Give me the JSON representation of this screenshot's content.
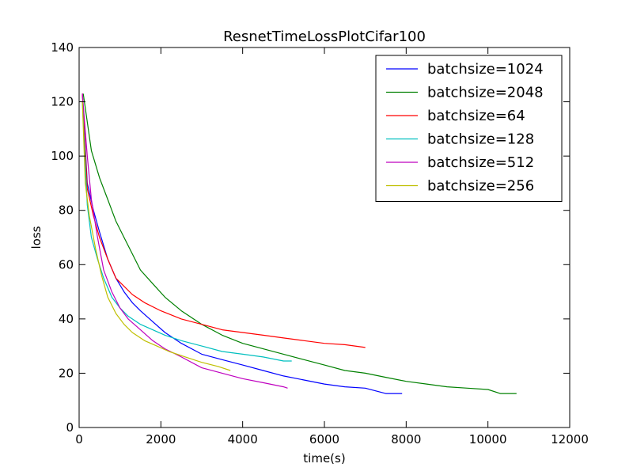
{
  "chart_data": {
    "type": "line",
    "title": "ResnetTimeLossPlotCifar100",
    "xlabel": "time(s)",
    "ylabel": "loss",
    "xlim": [
      0,
      12000
    ],
    "ylim": [
      0,
      140
    ],
    "xticks": [
      0,
      2000,
      4000,
      6000,
      8000,
      10000,
      12000
    ],
    "yticks": [
      0,
      20,
      40,
      60,
      80,
      100,
      120,
      140
    ],
    "grid": false,
    "legend_position": "top-right",
    "series": [
      {
        "name": "batchsize=1024",
        "color": "#0000ff",
        "x": [
          80,
          200,
          350,
          500,
          700,
          900,
          1100,
          1300,
          1500,
          1800,
          2100,
          2500,
          3000,
          3500,
          4000,
          4500,
          5000,
          5500,
          6000,
          6500,
          7000,
          7500,
          7900
        ],
        "y": [
          123,
          90,
          80,
          72,
          62,
          55,
          50,
          46,
          43,
          39,
          35,
          31,
          27,
          25,
          23,
          21,
          19,
          17.5,
          16,
          15,
          14.5,
          12.5,
          12.5
        ]
      },
      {
        "name": "batchsize=2048",
        "color": "#008000",
        "x": [
          100,
          300,
          500,
          700,
          900,
          1100,
          1300,
          1500,
          1800,
          2100,
          2500,
          3000,
          3500,
          4000,
          4500,
          5000,
          5500,
          6000,
          6500,
          7000,
          7500,
          8000,
          8500,
          9000,
          9500,
          10000,
          10300,
          10700
        ],
        "y": [
          123,
          102,
          92,
          84,
          76,
          70,
          64,
          58,
          53,
          48,
          43,
          38,
          34,
          31,
          29,
          27,
          25,
          23,
          21,
          20,
          18.5,
          17,
          16,
          15,
          14.5,
          14,
          12.5,
          12.5
        ]
      },
      {
        "name": "batchsize=64",
        "color": "#ff0000",
        "x": [
          80,
          200,
          350,
          500,
          700,
          900,
          1100,
          1300,
          1600,
          2000,
          2500,
          3000,
          3500,
          4000,
          4500,
          5000,
          5500,
          6000,
          6500,
          7000
        ],
        "y": [
          123,
          88,
          78,
          70,
          62,
          55,
          52,
          49,
          46,
          43,
          40,
          38,
          36,
          35,
          34,
          33,
          32,
          31,
          30.5,
          29.5
        ]
      },
      {
        "name": "batchsize=128",
        "color": "#00bfbf",
        "x": [
          80,
          200,
          300,
          450,
          600,
          800,
          1000,
          1200,
          1500,
          1800,
          2100,
          2500,
          3000,
          3500,
          4000,
          4500,
          5000,
          5200
        ],
        "y": [
          120,
          82,
          70,
          62,
          55,
          48,
          44,
          41,
          38,
          36,
          34,
          32,
          30,
          28,
          27,
          26,
          24.5,
          24.5
        ]
      },
      {
        "name": "batchsize=512",
        "color": "#bf00bf",
        "x": [
          80,
          200,
          300,
          450,
          600,
          800,
          1000,
          1200,
          1500,
          1800,
          2100,
          2500,
          3000,
          3500,
          4000,
          4500,
          5000,
          5100
        ],
        "y": [
          123,
          100,
          84,
          70,
          58,
          50,
          44,
          40,
          36,
          32,
          29,
          26,
          22,
          20,
          18,
          16.5,
          15,
          14.5
        ]
      },
      {
        "name": "batchsize=256",
        "color": "#bfbf00",
        "x": [
          80,
          150,
          250,
          400,
          550,
          700,
          900,
          1100,
          1300,
          1600,
          1900,
          2200,
          2600,
          3000,
          3400,
          3700
        ],
        "y": [
          120,
          90,
          78,
          66,
          56,
          48,
          42,
          38,
          35,
          32,
          30,
          28,
          26,
          24,
          22.5,
          21
        ]
      }
    ]
  }
}
